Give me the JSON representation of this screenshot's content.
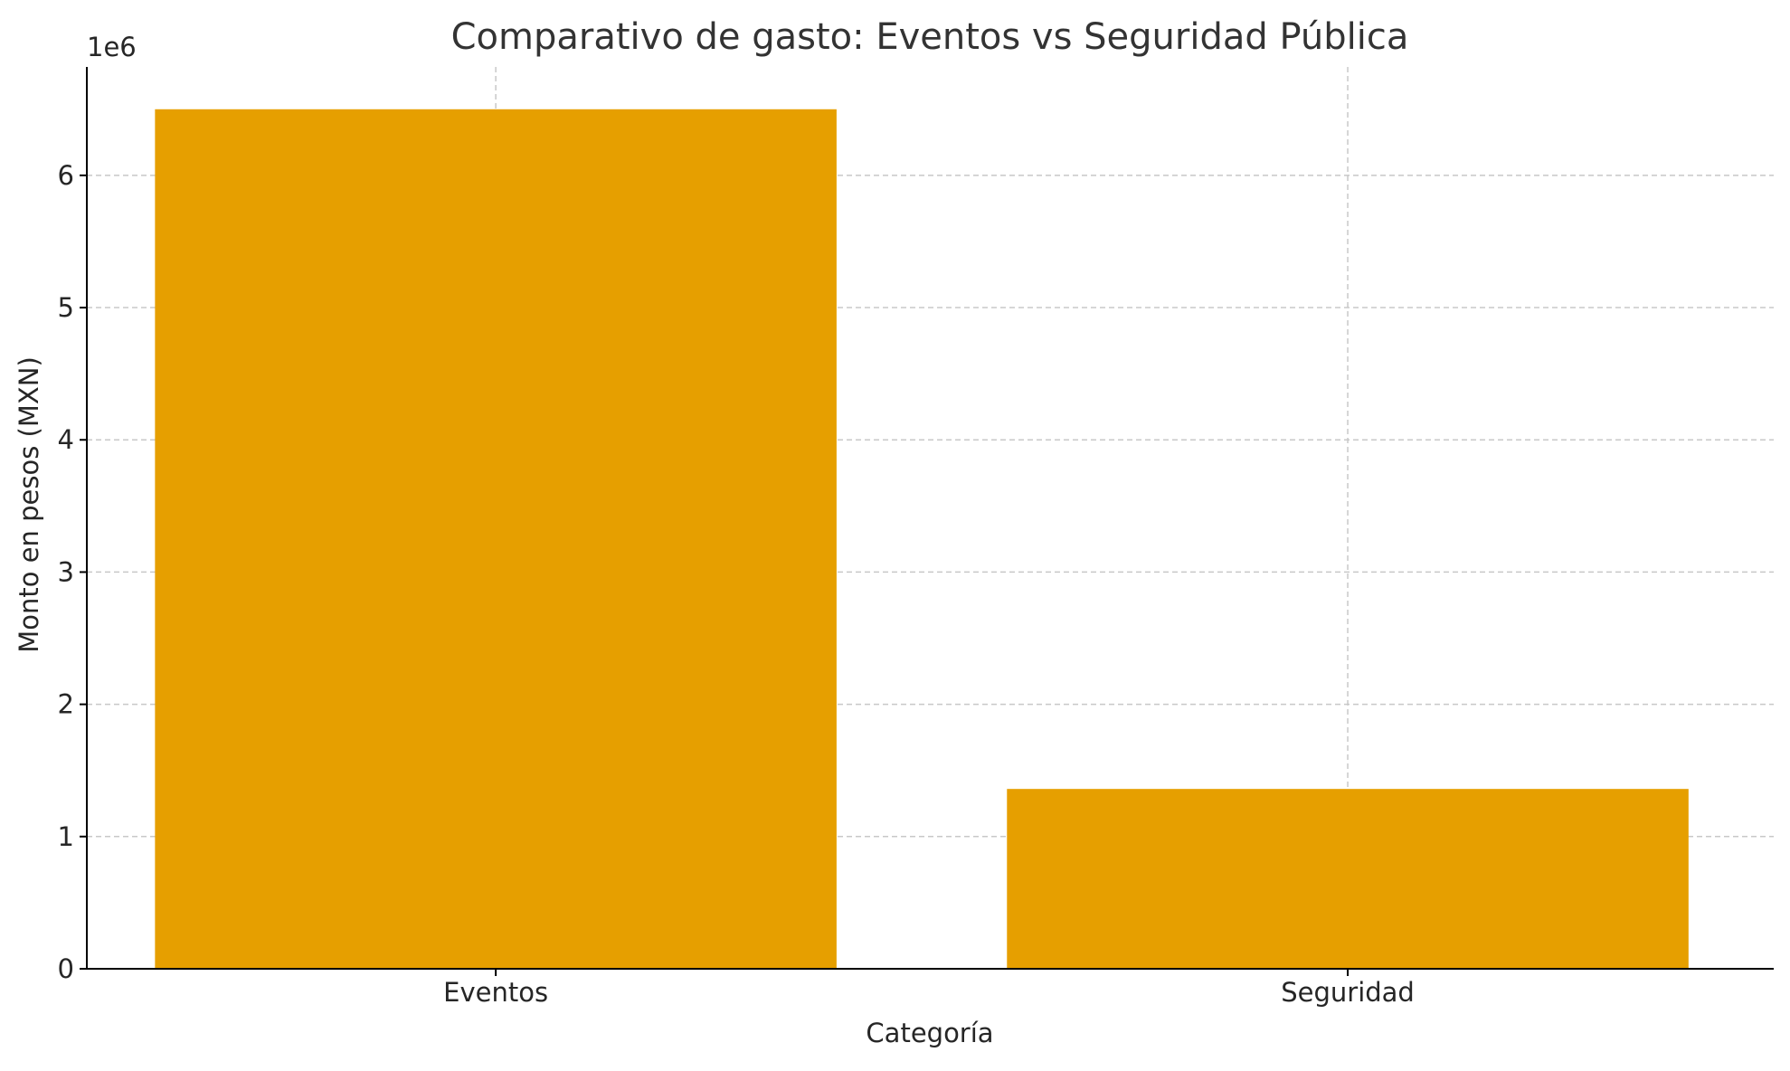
{
  "chart_data": {
    "type": "bar",
    "title": "Comparativo de gasto: Eventos vs Seguridad Pública",
    "xlabel": "Categoría",
    "ylabel": "Monto en pesos (MXN)",
    "y_multiplier_label": "1e6",
    "categories": [
      "Eventos",
      "Seguridad"
    ],
    "values": [
      6500000,
      1360000
    ],
    "ylim": [
      0,
      6820000
    ],
    "yticks": [
      0,
      1000000,
      2000000,
      3000000,
      4000000,
      5000000,
      6000000
    ],
    "ytick_labels": [
      "0",
      "1",
      "2",
      "3",
      "4",
      "5",
      "6"
    ],
    "bar_color": "#E69F00",
    "grid": true
  }
}
